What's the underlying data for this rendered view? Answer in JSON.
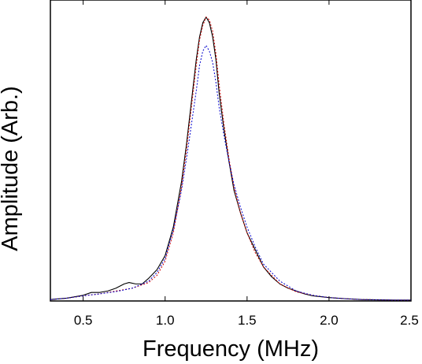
{
  "chart_data": {
    "type": "line",
    "title": "",
    "xlabel": "Frequency (MHz)",
    "ylabel": "Amplitude (Arb.)",
    "xlim": [
      0.3,
      2.5
    ],
    "ylim": [
      0,
      1.06
    ],
    "x_ticks": [
      "0.5",
      "1.0",
      "1.5",
      "2.0",
      "2.5"
    ],
    "x_tick_values": [
      0.5,
      1.0,
      1.5,
      2.0,
      2.5
    ],
    "y_tick_labels_shown": false,
    "grid": false,
    "legend": "none",
    "series": [
      {
        "color": "#000000",
        "style": "solid",
        "x": [
          0.3,
          0.4,
          0.5,
          0.55,
          0.6,
          0.65,
          0.7,
          0.75,
          0.78,
          0.82,
          0.86,
          0.9,
          0.95,
          1.0,
          1.05,
          1.1,
          1.13,
          1.16,
          1.19,
          1.21,
          1.23,
          1.25,
          1.27,
          1.29,
          1.31,
          1.33,
          1.36,
          1.39,
          1.42,
          1.46,
          1.5,
          1.55,
          1.6,
          1.65,
          1.7,
          1.75,
          1.8,
          1.85,
          1.9,
          2.0,
          2.1,
          2.2,
          2.3,
          2.4,
          2.5
        ],
        "y": [
          0.005,
          0.01,
          0.02,
          0.03,
          0.03,
          0.035,
          0.045,
          0.06,
          0.065,
          0.06,
          0.06,
          0.08,
          0.11,
          0.16,
          0.26,
          0.42,
          0.55,
          0.7,
          0.85,
          0.93,
          0.98,
          1.0,
          0.98,
          0.93,
          0.85,
          0.73,
          0.6,
          0.49,
          0.39,
          0.31,
          0.24,
          0.18,
          0.12,
          0.085,
          0.06,
          0.045,
          0.035,
          0.025,
          0.018,
          0.012,
          0.008,
          0.005,
          0.004,
          0.003,
          0.003
        ]
      },
      {
        "color": "#cc0000",
        "style": "dotted",
        "x": [
          0.3,
          0.4,
          0.5,
          0.6,
          0.7,
          0.8,
          0.9,
          0.95,
          1.0,
          1.05,
          1.1,
          1.13,
          1.16,
          1.19,
          1.21,
          1.23,
          1.25,
          1.27,
          1.29,
          1.31,
          1.33,
          1.36,
          1.39,
          1.42,
          1.46,
          1.5,
          1.55,
          1.6,
          1.7,
          1.8,
          1.9,
          2.0,
          2.1,
          2.2,
          2.3,
          2.4,
          2.5
        ],
        "y": [
          0.005,
          0.01,
          0.018,
          0.025,
          0.035,
          0.045,
          0.065,
          0.09,
          0.14,
          0.24,
          0.4,
          0.53,
          0.68,
          0.83,
          0.92,
          0.97,
          1.0,
          0.99,
          0.95,
          0.87,
          0.76,
          0.62,
          0.5,
          0.4,
          0.31,
          0.24,
          0.17,
          0.12,
          0.06,
          0.032,
          0.02,
          0.012,
          0.008,
          0.005,
          0.004,
          0.003,
          0.003
        ]
      },
      {
        "color": "#0000cc",
        "style": "dotted",
        "x": [
          0.3,
          0.4,
          0.5,
          0.6,
          0.7,
          0.8,
          0.9,
          0.95,
          1.0,
          1.05,
          1.1,
          1.13,
          1.16,
          1.19,
          1.21,
          1.23,
          1.25,
          1.27,
          1.29,
          1.31,
          1.33,
          1.36,
          1.39,
          1.42,
          1.46,
          1.5,
          1.55,
          1.6,
          1.7,
          1.8,
          1.9,
          2.0,
          2.1,
          2.2,
          2.3,
          2.4,
          2.5
        ],
        "y": [
          0.005,
          0.01,
          0.018,
          0.025,
          0.033,
          0.045,
          0.07,
          0.1,
          0.15,
          0.25,
          0.39,
          0.5,
          0.62,
          0.74,
          0.83,
          0.88,
          0.9,
          0.88,
          0.84,
          0.77,
          0.68,
          0.58,
          0.49,
          0.41,
          0.33,
          0.26,
          0.19,
          0.13,
          0.07,
          0.035,
          0.02,
          0.012,
          0.008,
          0.005,
          0.004,
          0.003,
          0.003
        ]
      }
    ]
  }
}
